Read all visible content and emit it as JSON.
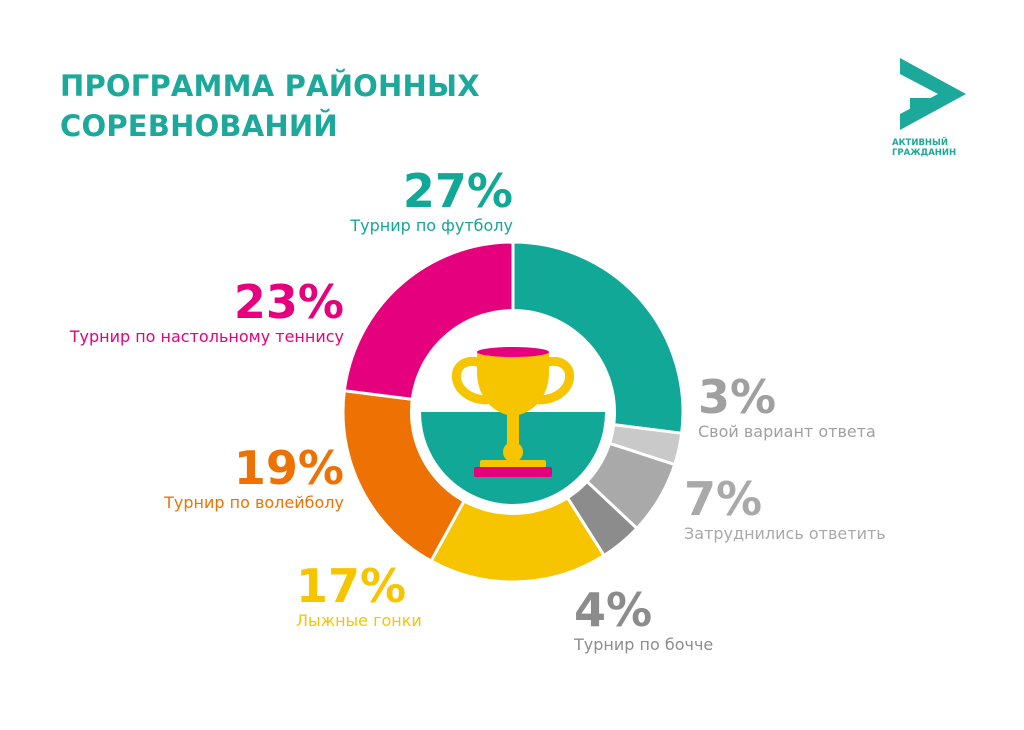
{
  "title": {
    "line1": "ПРОГРАММА РАЙОННЫХ",
    "line2": "СОРЕВНОВАНИЙ"
  },
  "logo": {
    "line1": "АКТИВНЫЙ",
    "line2": "ГРАЖДАНИН",
    "color": "#1ca89a"
  },
  "chart_data": {
    "type": "pie",
    "center_icon": "trophy-icon",
    "slices": [
      {
        "label": "Турнир по футболу",
        "pct_label": "27%",
        "value": 27,
        "color": "#12a897"
      },
      {
        "label": "Свой вариант ответа",
        "pct_label": "3%",
        "value": 3,
        "color": "#c9c9c9"
      },
      {
        "label": "Затруднились ответить",
        "pct_label": "7%",
        "value": 7,
        "color": "#a9a9a9"
      },
      {
        "label": "Турнир по бочче",
        "pct_label": "4%",
        "value": 4,
        "color": "#8c8c8c"
      },
      {
        "label": "Лыжные гонки",
        "pct_label": "17%",
        "value": 17,
        "color": "#f7c400"
      },
      {
        "label": "Турнир по волейболу",
        "pct_label": "19%",
        "value": 19,
        "color": "#ee7203"
      },
      {
        "label": "Турнир по настольному теннису",
        "pct_label": "23%",
        "value": 23,
        "color": "#e5007e"
      }
    ]
  }
}
